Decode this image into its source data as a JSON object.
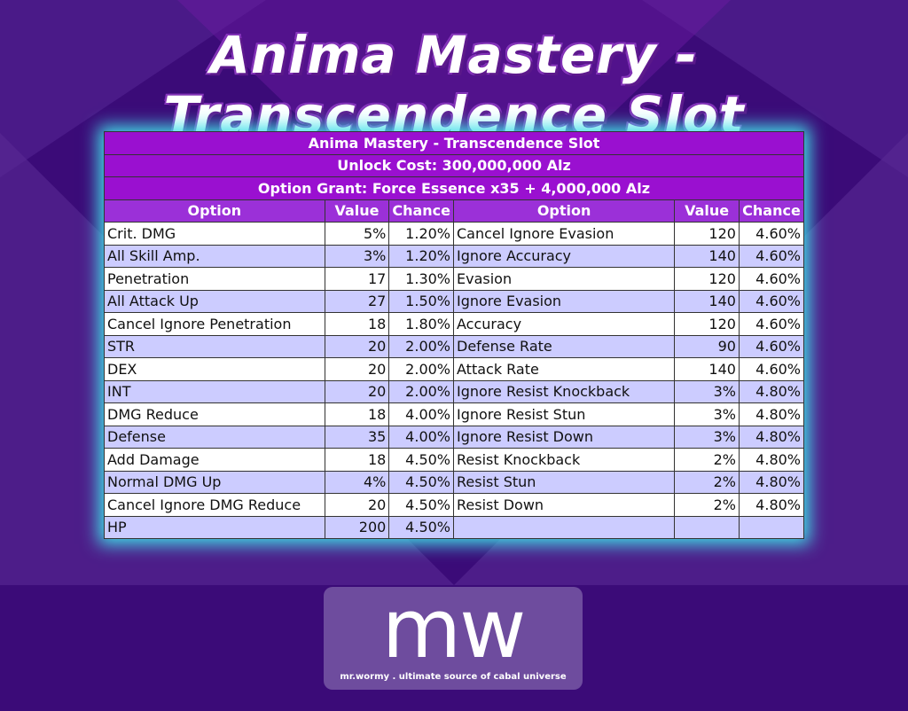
{
  "header": {
    "title": "Anima Mastery - Transcendence Slot"
  },
  "table": {
    "title": "Anima Mastery - Transcendence Slot",
    "unlock_cost": "Unlock Cost: 300,000,000 Alz",
    "option_grant": "Option Grant: Force Essence x35 + 4,000,000 Alz",
    "columns": [
      "Option",
      "Value",
      "Chance",
      "Option",
      "Value",
      "Chance"
    ],
    "left_rows": [
      [
        "Crit. DMG",
        "5%",
        "1.20%"
      ],
      [
        "All Skill Amp.",
        "3%",
        "1.20%"
      ],
      [
        "Penetration",
        "17",
        "1.30%"
      ],
      [
        "All Attack Up",
        "27",
        "1.50%"
      ],
      [
        "Cancel Ignore Penetration",
        "18",
        "1.80%"
      ],
      [
        "STR",
        "20",
        "2.00%"
      ],
      [
        "DEX",
        "20",
        "2.00%"
      ],
      [
        "INT",
        "20",
        "2.00%"
      ],
      [
        "DMG Reduce",
        "18",
        "4.00%"
      ],
      [
        "Defense",
        "35",
        "4.00%"
      ],
      [
        "Add Damage",
        "18",
        "4.50%"
      ],
      [
        "Normal DMG Up",
        "4%",
        "4.50%"
      ],
      [
        "Cancel Ignore DMG Reduce",
        "20",
        "4.50%"
      ],
      [
        "HP",
        "200",
        "4.50%"
      ]
    ],
    "right_rows": [
      [
        "Cancel Ignore Evasion",
        "120",
        "4.60%"
      ],
      [
        "Ignore Accuracy",
        "140",
        "4.60%"
      ],
      [
        "Evasion",
        "120",
        "4.60%"
      ],
      [
        "Ignore Evasion",
        "140",
        "4.60%"
      ],
      [
        "Accuracy",
        "120",
        "4.60%"
      ],
      [
        "Defense Rate",
        "90",
        "4.60%"
      ],
      [
        "Attack Rate",
        "140",
        "4.60%"
      ],
      [
        "Ignore Resist Knockback",
        "3%",
        "4.80%"
      ],
      [
        "Ignore Resist Stun",
        "3%",
        "4.80%"
      ],
      [
        "Ignore Resist Down",
        "3%",
        "4.80%"
      ],
      [
        "Resist Knockback",
        "2%",
        "4.80%"
      ],
      [
        "Resist Stun",
        "2%",
        "4.80%"
      ],
      [
        "Resist Down",
        "2%",
        "4.80%"
      ]
    ]
  },
  "logo": {
    "mark": "mw",
    "tagline": "mr.wormy . ultimate source of cabal universe"
  }
}
